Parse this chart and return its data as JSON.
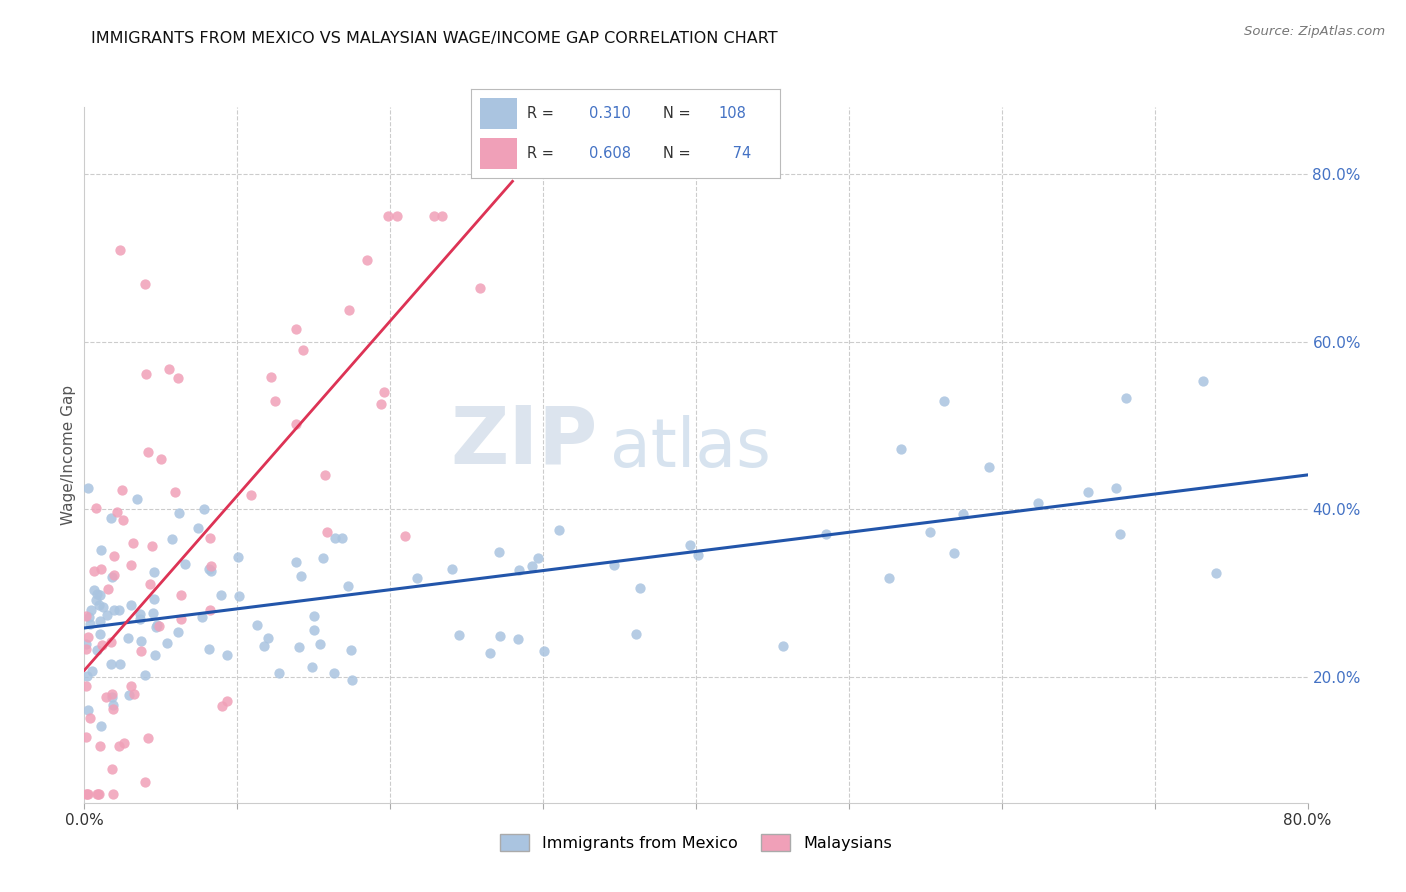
{
  "title": "IMMIGRANTS FROM MEXICO VS MALAYSIAN WAGE/INCOME GAP CORRELATION CHART",
  "source": "Source: ZipAtlas.com",
  "ylabel": "Wage/Income Gap",
  "xlim": [
    0.0,
    0.8
  ],
  "ylim": [
    0.05,
    0.88
  ],
  "xtick_pos": [
    0.0,
    0.1,
    0.2,
    0.3,
    0.4,
    0.5,
    0.6,
    0.7,
    0.8
  ],
  "xticklabels": [
    "0.0%",
    "",
    "",
    "",
    "",
    "",
    "",
    "",
    "80.0%"
  ],
  "yticks_right": [
    0.2,
    0.4,
    0.6,
    0.8
  ],
  "ytick_right_labels": [
    "20.0%",
    "40.0%",
    "60.0%",
    "80.0%"
  ],
  "mexico_color": "#aac4e0",
  "malaysia_color": "#f0a0b8",
  "mexico_line_color": "#2255aa",
  "malaysia_line_color": "#dd3355",
  "mexico_R": 0.31,
  "mexico_N": 108,
  "malaysia_R": 0.608,
  "malaysia_N": 74,
  "legend_label_mexico": "Immigrants from Mexico",
  "legend_label_malaysia": "Malaysians",
  "watermark_zip": "ZIP",
  "watermark_atlas": "atlas",
  "background_color": "#ffffff",
  "grid_color": "#cccccc",
  "right_tick_color": "#4472c4",
  "title_color": "#111111",
  "source_color": "#777777"
}
